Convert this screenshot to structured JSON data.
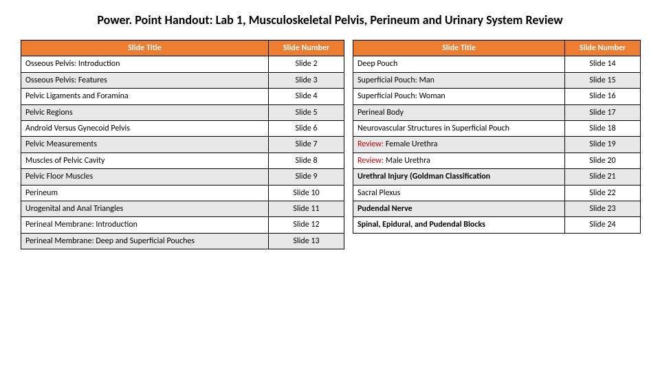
{
  "title": "Power. Point Handout: Lab 1, Musculoskeletal Pelvis, Perineum and Urinary System  Review",
  "headers": {
    "title": "Slide Title",
    "number": "Slide Number"
  },
  "left": [
    {
      "title": "Osseous Pelvis: Introduction",
      "num": "Slide 2"
    },
    {
      "title": "Osseous Pelvis: Features",
      "num": "Slide 3"
    },
    {
      "title": "Pelvic Ligaments and Foramina",
      "num": "Slide 4"
    },
    {
      "title": "Pelvic Regions",
      "num": "Slide 5"
    },
    {
      "title": "Android Versus Gynecoid Pelvis",
      "num": "Slide 6"
    },
    {
      "title": "Pelvic Measurements",
      "num": "Slide 7"
    },
    {
      "title": "Muscles of Pelvic Cavity",
      "num": "Slide 8"
    },
    {
      "title": "Pelvic Floor Muscles",
      "num": "Slide 9"
    },
    {
      "title": "Perineum",
      "num": "Slide 10"
    },
    {
      "title": "Urogenital and Anal Triangles",
      "num": "Slide 11"
    },
    {
      "title": "Perineal Membrane: Introduction",
      "num": "Slide 12"
    },
    {
      "title": "Perineal Membrane: Deep and Superficial Pouches",
      "num": "Slide 13"
    }
  ],
  "right": [
    {
      "title": "Deep Pouch",
      "num": "Slide 14"
    },
    {
      "title": "Superficial Pouch: Man",
      "num": "Slide 15"
    },
    {
      "title": "Superficial Pouch: Woman",
      "num": "Slide 16"
    },
    {
      "title": "Perineal Body",
      "num": "Slide 17"
    },
    {
      "title": "Neurovascular Structures in Superficial Pouch",
      "num": "Slide 18"
    },
    {
      "title": "Female Urethra",
      "num": "Slide 19",
      "review": true
    },
    {
      "title": "Male Urethra",
      "num": "Slide 20",
      "review": true
    },
    {
      "title": "Urethral Injury (Goldman Classification",
      "num": "Slide 21",
      "bold": true
    },
    {
      "title": "Sacral Plexus",
      "num": "Slide 22"
    },
    {
      "title": "Pudendal Nerve",
      "num": "Slide 23",
      "bold": true
    },
    {
      "title": "Spinal, Epidural, and Pudendal Blocks",
      "num": "Slide 24",
      "bold": true
    }
  ],
  "review_prefix": "Review: ",
  "colors": {
    "header_bg": "#ed7d31",
    "header_fg": "#ffffff",
    "alt_row_bg": "#e8e8e8",
    "border": "#000000",
    "review_color": "#c00000"
  }
}
